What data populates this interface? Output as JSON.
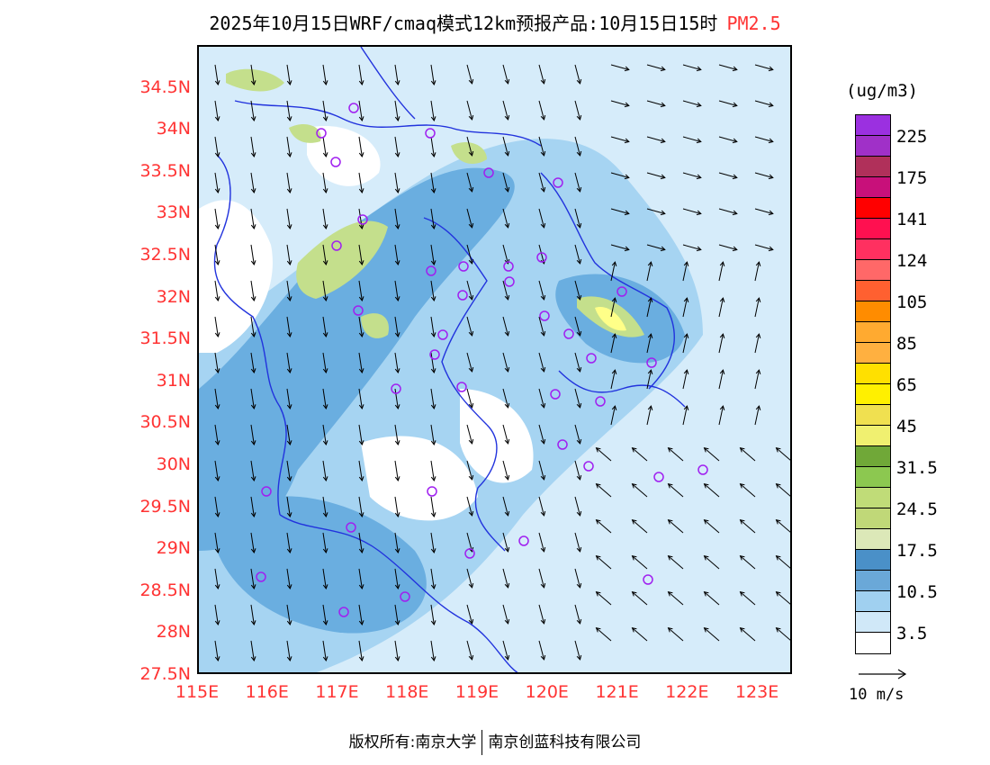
{
  "title": {
    "main": "2025年10月15日WRF/cmaq模式12km预报产品:10月15日15时",
    "variable": "PM2.5"
  },
  "map": {
    "lat_labels": [
      "34.5N",
      "34N",
      "33.5N",
      "33N",
      "32.5N",
      "32N",
      "31.5N",
      "31N",
      "30.5N",
      "30N",
      "29.5N",
      "29N",
      "28.5N",
      "28N",
      "27.5N"
    ],
    "lat_values": [
      34.5,
      34,
      33.5,
      33,
      32.5,
      32,
      31.5,
      31,
      30.5,
      30,
      29.5,
      29,
      28.5,
      28,
      27.5
    ],
    "lon_labels": [
      "115E",
      "116E",
      "117E",
      "118E",
      "119E",
      "120E",
      "121E",
      "122E",
      "123E"
    ],
    "lon_values": [
      115,
      116,
      117,
      118,
      119,
      120,
      121,
      122,
      123
    ],
    "lat_range": [
      27.5,
      35.0
    ],
    "lon_range": [
      115.0,
      123.5
    ],
    "wind_reference": "10 m/s",
    "colors": {
      "boundary": "#2233dd",
      "arrow": "#000000",
      "station": "#a020f0",
      "axis_label": "#ff3333"
    }
  },
  "legend": {
    "unit": "(ug/m3)",
    "colors": [
      "#9b30e0",
      "#a030c8",
      "#b0305a",
      "#c8107a",
      "#ff0000",
      "#ff1050",
      "#ff3060",
      "#ff6868",
      "#ff6030",
      "#ff8c00",
      "#ffaa30",
      "#ffb040",
      "#ffe000",
      "#fff000",
      "#f0e050",
      "#f0f070",
      "#70a838",
      "#8cc850",
      "#c0dc78",
      "#c0d878",
      "#dce8b8",
      "#4a90c8",
      "#6aa8d8",
      "#a0d0f0",
      "#d0e8f8",
      "#ffffff"
    ],
    "labels": [
      "225",
      "175",
      "141",
      "124",
      "105",
      "85",
      "65",
      "45",
      "31.5",
      "24.5",
      "17.5",
      "10.5",
      "3.5"
    ]
  },
  "footer": {
    "left": "版权所有:南京大学",
    "right": "南京创蓝科技有限公司"
  }
}
